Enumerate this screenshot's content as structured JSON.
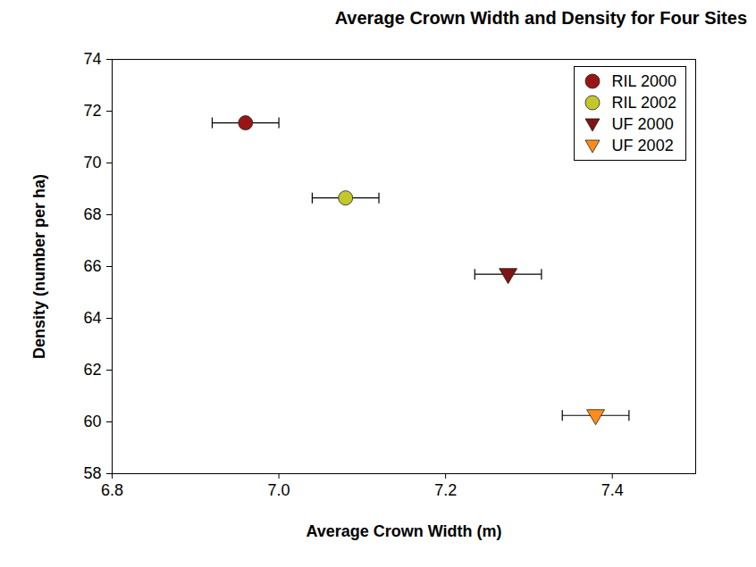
{
  "chart_data": {
    "type": "scatter",
    "title": "Average Crown Width and Density for Four Sites",
    "x_label": "Average Crown Width (m)",
    "y_label": "Density (number per ha)",
    "xlim": [
      6.8,
      7.5
    ],
    "xticks": [
      6.8,
      {
        "value": 7,
        "label": "7.0"
      },
      7.2,
      7.4
    ],
    "ylim": [
      58,
      74
    ],
    "yticks": [
      58,
      60,
      62,
      64,
      66,
      68,
      70,
      72,
      74
    ],
    "grid": false,
    "legend": "upper right",
    "series": [
      {
        "name": "RIL 2000",
        "color": "#9a1616",
        "marker": "circle",
        "x": [
          6.96
        ],
        "y": [
          71.55
        ],
        "xerr": [
          0.04
        ]
      },
      {
        "name": "RIL 2002",
        "color": "#c3c82a",
        "marker": "circle",
        "x": [
          7.08
        ],
        "y": [
          68.65
        ],
        "xerr": [
          0.04
        ]
      },
      {
        "name": "UF 2000",
        "color": "#7f1414",
        "marker": "triangle-down",
        "x": [
          7.275
        ],
        "y": [
          65.7
        ],
        "xerr": [
          0.04
        ]
      },
      {
        "name": "UF 2002",
        "color": "#ff8c1a",
        "marker": "triangle-down",
        "x": [
          7.38
        ],
        "y": [
          60.25
        ],
        "xerr": [
          0.04
        ]
      }
    ]
  }
}
